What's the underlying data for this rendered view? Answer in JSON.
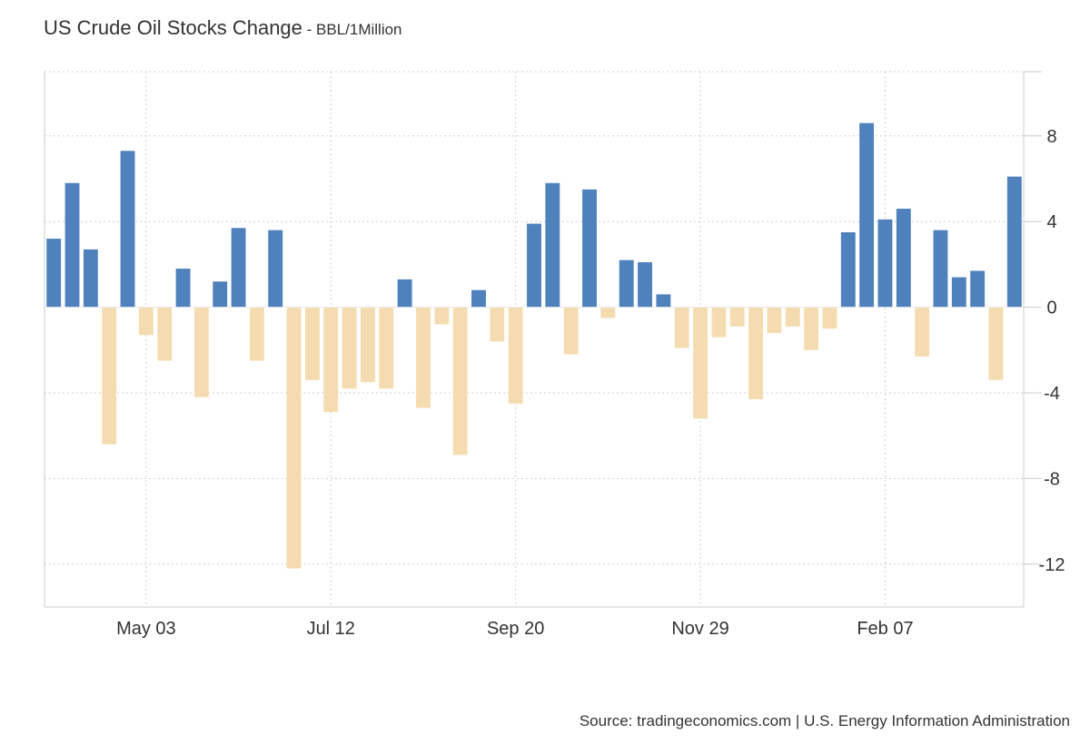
{
  "header": {
    "title": "US Crude Oil Stocks Change",
    "subtitle": " - BBL/1Million"
  },
  "footer": {
    "source": "Source: tradingeconomics.com | U.S. Energy Information Administration"
  },
  "colors": {
    "positive": "#4f81bd",
    "negative": "#f5dcb0",
    "grid": "#d0d0d0",
    "axis": "#cccccc"
  },
  "chart_data": {
    "type": "bar",
    "title": "US Crude Oil Stocks Change",
    "subtitle": "BBL/1Million",
    "xlabel": "",
    "ylabel": "",
    "y_axis_position": "right",
    "ylim": [
      -14,
      11
    ],
    "yticks": [
      8,
      4,
      0,
      -4,
      -8,
      -12
    ],
    "ytick_labels": [
      "8",
      "4",
      "0",
      "-4",
      "-8",
      "-12"
    ],
    "xtick_labels": [
      "May 03",
      "Jul 12",
      "Sep 20",
      "Nov 29",
      "Feb 07"
    ],
    "xtick_positions": [
      5.5,
      15.5,
      25.5,
      35.5,
      45.5
    ],
    "grid": true,
    "legend": "none",
    "values": [
      3.2,
      5.8,
      2.7,
      -6.4,
      7.3,
      -1.3,
      -2.5,
      1.8,
      -4.2,
      1.2,
      3.7,
      -2.5,
      3.6,
      -12.2,
      -3.4,
      -4.9,
      -3.8,
      -3.5,
      -3.8,
      1.3,
      -4.7,
      -0.8,
      -6.9,
      0.8,
      -1.6,
      -4.5,
      3.9,
      5.8,
      -2.2,
      5.5,
      -0.5,
      2.2,
      2.1,
      0.6,
      -1.9,
      -5.2,
      -1.4,
      -0.9,
      -4.3,
      -1.2,
      -0.9,
      -2.0,
      -1.0,
      3.5,
      8.6,
      4.1,
      4.6,
      -2.3,
      3.6,
      1.4,
      1.7,
      -3.4,
      6.1
    ]
  }
}
